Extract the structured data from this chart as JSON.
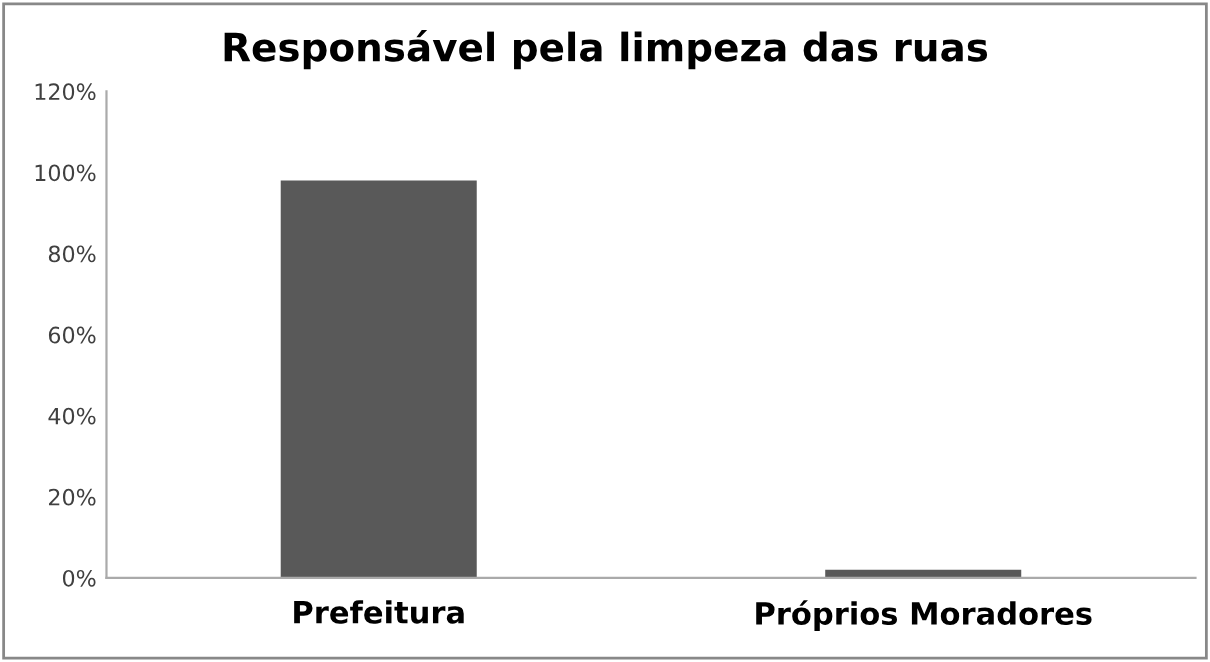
{
  "chart_data": {
    "type": "bar",
    "title": "Responsável pela limpeza das ruas",
    "categories": [
      "Prefeitura",
      "Próprios Moradores"
    ],
    "values": [
      98,
      2
    ],
    "color": "#595959",
    "ylim": [
      0,
      120
    ],
    "yticks": [
      {
        "value": 0,
        "label": "0%"
      },
      {
        "value": 20,
        "label": "20%"
      },
      {
        "value": 40,
        "label": "40%"
      },
      {
        "value": 60,
        "label": "60%"
      },
      {
        "value": 80,
        "label": "80%"
      },
      {
        "value": 100,
        "label": "100%"
      },
      {
        "value": 120,
        "label": "120%"
      }
    ],
    "grid": false
  }
}
